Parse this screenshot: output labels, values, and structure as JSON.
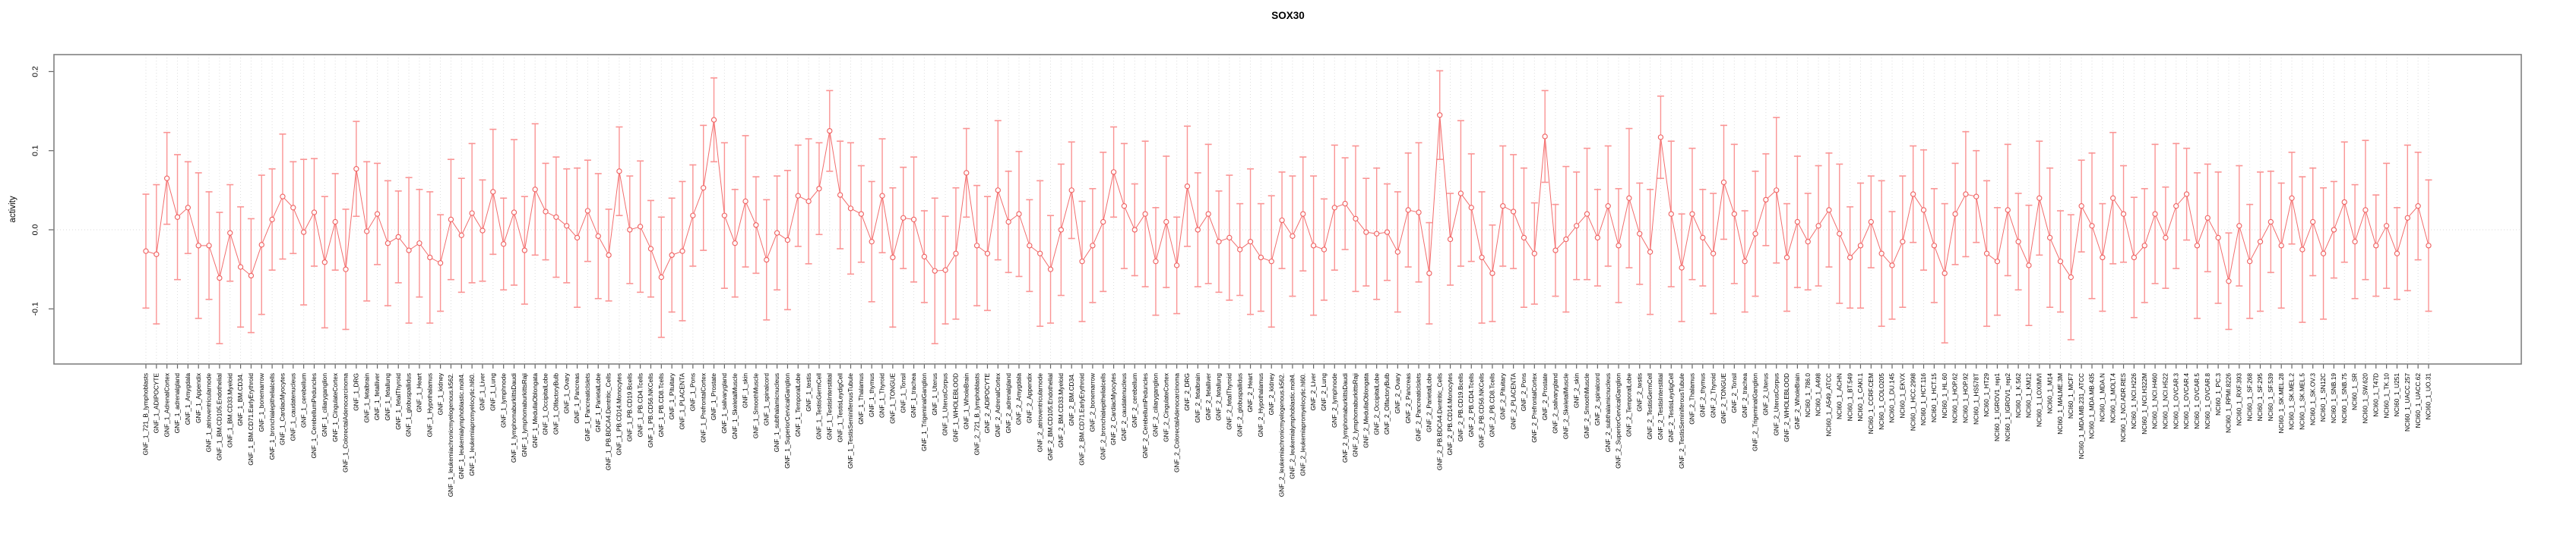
{
  "title": "SOX30",
  "y_axis": {
    "label": "activity",
    "ticks": [
      "0.2",
      "0.1",
      "0.0",
      "-0.1"
    ],
    "tick_values": [
      0.2,
      0.1,
      0.0,
      -0.1
    ]
  },
  "colors": {
    "series_line": "#f26d6d",
    "marker_stroke": "#ef5f5f",
    "error_bar": "#fa9494",
    "grid": "#dddddd",
    "zero_line": "#d8d8d8",
    "plot_border": "#808080",
    "tick": "#666666",
    "text": "#000000"
  },
  "chart_data": {
    "type": "line",
    "subtype": "points-with-error-bars",
    "title": "SOX30",
    "xlabel": "",
    "ylabel": "activity",
    "ylim": [
      -0.17,
      0.22
    ],
    "grid": "vertical-dotted-per-category, dotted-zero-line",
    "legend_position": "none",
    "categories": [
      "GNF_1_721_B_lymphoblasts",
      "GNF_1_ADIPOCYTE",
      "GNF_1_AdrenalCortex",
      "GNF_1_adrenalgland",
      "GNF_1_Amygdala",
      "GNF_1_Appendix",
      "GNF_1_atrioventricularnode",
      "GNF_1_BM.CD105.Endothelial",
      "GNF_1_BM.CD33.Myeloid",
      "GNF_1_BM.CD34.",
      "GNF_1_BM.CD71.EarlyErythroid",
      "GNF_1_bonemarrow",
      "GNF_1_bronchialepithelialcells",
      "GNF_1_CardiacMyocytes",
      "GNF_1_caudatenucleus",
      "GNF_1_cerebellum",
      "GNF_1_CerebellumPeduncles",
      "GNF_1_ciliaryganglion",
      "GNF_1_CingulateCortex",
      "GNF_1_ColorectalAdenocarcinoma",
      "GNF_1_DRG",
      "GNF_1_fetalbrain",
      "GNF_1_fetalliver",
      "GNF_1_fetallung",
      "GNF_1_fetalThyroid",
      "GNF_1_globuspallidus",
      "GNF_1_Heart",
      "GNF_1_Hypothalamus",
      "GNF_1_kidney",
      "GNF_1_leukemiachronicmyelogenous.k562.",
      "GNF_1_leukemialymphoblastic.molt4.",
      "GNF_1_leukemiapromyelocytic.hl60.",
      "GNF_1_Liver",
      "GNF_1_Lung",
      "GNF_1_lymphnode",
      "GNF_1_lymphomaburkittsDaudi",
      "GNF_1_lymphomaburkittsRaji",
      "GNF_1_MedullaOblongata",
      "GNF_1_OccipitalLobe",
      "GNF_1_OlfactoryBulb",
      "GNF_1_Ovary",
      "GNF_1_Pancreas",
      "GNF_1_PancreaticIslets",
      "GNF_1_ParietalLobe",
      "GNF_1_PB.BDCA4.Dentritic_Cells",
      "GNF_1_PB.CD14.Monocytes",
      "GNF_1_PB.CD19.Bcells",
      "GNF_1_PB.CD4.Tcells",
      "GNF_1_PB.CD56.NKCells",
      "GNF_1_PB.CD8.Tcells",
      "GNF_1_Pituitary",
      "GNF_1_PLACENTA",
      "GNF_1_Pons",
      "GNF_1_PrefrontalCortex",
      "GNF_1_Prostate",
      "GNF_1_salivarygland",
      "GNF_1_SkeletalMuscle",
      "GNF_1_skin",
      "GNF_1_SmoothMuscle",
      "GNF_1_spinalcord",
      "GNF_1_subthalamicnucleus",
      "GNF_1_SuperiorCervicalGanglion",
      "GNF_1_TemporalLobe",
      "GNF_1_testis",
      "GNF_1_TestisGermCell",
      "GNF_1_TestisInterstitial",
      "GNF_1_TestisLeydigCell",
      "GNF_1_TestisSeminiferousTubule",
      "GNF_1_Thalamus",
      "GNF_1_thymus",
      "GNF_1_Thyroid",
      "GNF_1_TONGUE",
      "GNF_1_Tonsil",
      "GNF_1_trachea",
      "GNF_1_TrigeminalGanglion",
      "GNF_1_Uterus",
      "GNF_1_UterusCorpus",
      "GNF_1_WHOLEBLOOD",
      "GNF_1_WholeBrain",
      "GNF_2_721_B_lymphoblasts",
      "GNF_2_ADIPOCYTE",
      "GNF_2_AdrenalCortex",
      "GNF_2_adrenalgland",
      "GNF_2_Amygdala",
      "GNF_2_Appendix",
      "GNF_2_atrioventricularnode",
      "GNF_2_BM.CD105.Endothelial",
      "GNF_2_BM.CD33.Myeloid",
      "GNF_2_BM.CD34.",
      "GNF_2_BM.CD71.EarlyErythroid",
      "GNF_2_bonemarrow",
      "GNF_2_bronchialepithelialcells",
      "GNF_2_CardiacMyocytes",
      "GNF_2_caudatenucleus",
      "GNF_2_cerebellum",
      "GNF_2_CerebellumPeduncles",
      "GNF_2_ciliaryganglion",
      "GNF_2_CingulateCortex",
      "GNF_2_ColorectalAdenocarcinoma",
      "GNF_2_DRG",
      "GNF_2_fetalbrain",
      "GNF_2_fetalliver",
      "GNF_2_fetallung",
      "GNF_2_fetalThyroid",
      "GNF_2_globuspallidus",
      "GNF_2_Heart",
      "GNF_2_Hypothalamus",
      "GNF_2_kidney",
      "GNF_2_leukemiachronicmyelogenous.k562.",
      "GNF_2_leukemialymphoblastic.molt4.",
      "GNF_2_leukemiapromyelocytic.hl60.",
      "GNF_2_Liver",
      "GNF_2_Lung",
      "GNF_2_lymphnode",
      "GNF_2_lymphomaburkittsDaudi",
      "GNF_2_lymphomaburkittsRaji",
      "GNF_2_MedullaOblongata",
      "GNF_2_OccipitalLobe",
      "GNF_2_OlfactoryBulb",
      "GNF_2_Ovary",
      "GNF_2_Pancreas",
      "GNF_2_PancreaticIslets",
      "GNF_2_ParietalLobe",
      "GNF_2_PB.BDCA4.Dentritic_Cells",
      "GNF_2_PB.CD14.Monocytes",
      "GNF_2_PB.CD19.Bcells",
      "GNF_2_PB.CD4.Tcells",
      "GNF_2_PB.CD56.NKCells",
      "GNF_2_PB.CD8.Tcells",
      "GNF_2_Pituitary",
      "GNF_2_PLACENTA",
      "GNF_2_Pons",
      "GNF_2_PrefrontalCortex",
      "GNF_2_Prostate",
      "GNF_2_salivarygland",
      "GNF_2_SkeletalMuscle",
      "GNF_2_skin",
      "GNF_2_SmoothMuscle",
      "GNF_2_spinalcord",
      "GNF_2_subthalamicnucleus",
      "GNF_2_SuperiorCervicalGanglion",
      "GNF_2_TemporalLobe",
      "GNF_2_testis",
      "GNF_2_TestisGermCell",
      "GNF_2_TestisInterstitial",
      "GNF_2_TestisLeydigCell",
      "GNF_2_TestisSeminiferousTubule",
      "GNF_2_Thalamus",
      "GNF_2_thymus",
      "GNF_2_Thyroid",
      "GNF_2_TONGUE",
      "GNF_2_Tonsil",
      "GNF_2_trachea",
      "GNF_2_TrigeminalGanglion",
      "GNF_2_Uterus",
      "GNF_2_UterusCorpus",
      "GNF_2_WHOLEBLOOD",
      "GNF_2_WholeBrain",
      "NCI60_1_786.0",
      "NCI60_1_A498",
      "NCI60_1_A549_ATCC",
      "NCI60_1_ACHN",
      "NCI60_1_BT.549",
      "NCI60_1_CAKI.1",
      "NCI60_1_CCRF.CEM",
      "NCI60_1_COLO205",
      "NCI60_1_DU.145",
      "NCI60_1_EKVX",
      "NCI60_1_HCC.2998",
      "NCI60_1_HCT.116",
      "NCI60_1_HCT.15",
      "NCI60_1_HL.60",
      "NCI60_1_HOP.62",
      "NCI60_1_HOP.92",
      "NCI60_1_HS578T",
      "NCI60_1_HT29",
      "NCI60_1_IGROV1_rep1",
      "NCI60_1_IGROV1_rep2",
      "NCI60_1_K.562",
      "NCI60_1_KM12",
      "NCI60_1_LOXIMVI",
      "NCI60_1_M14",
      "NCI60_1_MALME.3M",
      "NCI60_1_MCF7",
      "NCI60_1_MDA.MB.231_ATCC",
      "NCI60_1_MDA.MB.435",
      "NCI60_1_MDA.N",
      "NCI60_1_MOLT.4",
      "NCI60_1_NCI.ADR.RES",
      "NCI60_1_NCI.H226",
      "NCI60_1_NCI.H322M",
      "NCI60_1_NCI.H460",
      "NCI60_1_NCI.H522",
      "NCI60_1_OVCAR.3",
      "NCI60_1_OVCAR.4",
      "NCI60_1_OVCAR.5",
      "NCI60_1_OVCAR.8",
      "NCI60_1_PC.3",
      "NCI60_1_RPMI.8226",
      "NCI60_1_RXF.393",
      "NCI60_1_SF.268",
      "NCI60_1_SF.295",
      "NCI60_1_SF.539",
      "NCI60_1_SK.MEL.28",
      "NCI60_1_SK.MEL.2",
      "NCI60_1_SK.MEL.5",
      "NCI60_1_SK.OV.3",
      "NCI60_1_SN12C",
      "NCI60_1_SNB.19",
      "NCI60_1_SNB.75",
      "NCI60_1_SR",
      "NCI60_1_SW.620",
      "NCI60_1_T47D",
      "NCI60_1_TK.10",
      "NCI60_1_U251",
      "NCI60_1_UACC.257",
      "NCI60_1_UACC.62",
      "NCI60_1_UO.31"
    ],
    "values": [
      -0.027,
      -0.031,
      0.065,
      0.016,
      0.028,
      -0.02,
      -0.02,
      -0.061,
      -0.004,
      -0.047,
      -0.058,
      -0.019,
      0.013,
      0.042,
      0.028,
      -0.003,
      0.022,
      -0.041,
      0.01,
      -0.05,
      0.077,
      -0.002,
      0.02,
      -0.017,
      -0.009,
      -0.026,
      -0.017,
      -0.035,
      -0.042,
      0.013,
      -0.007,
      0.021,
      -0.001,
      0.048,
      -0.018,
      0.022,
      -0.026,
      0.051,
      0.023,
      0.016,
      0.005,
      -0.01,
      0.024,
      -0.008,
      -0.032,
      0.074,
      0.0,
      0.004,
      -0.024,
      -0.06,
      -0.032,
      -0.027,
      0.018,
      0.053,
      0.139,
      0.018,
      -0.017,
      0.036,
      0.006,
      -0.038,
      -0.004,
      -0.013,
      0.043,
      0.036,
      0.052,
      0.125,
      0.044,
      0.027,
      0.02,
      -0.015,
      0.043,
      -0.035,
      0.015,
      0.013,
      -0.034,
      -0.052,
      -0.051,
      -0.03,
      0.072,
      -0.02,
      -0.03,
      0.05,
      0.01,
      0.02,
      -0.02,
      -0.03,
      -0.05,
      0.0,
      0.05,
      -0.04,
      -0.02,
      0.01,
      0.073,
      0.03,
      0.0,
      0.02,
      -0.04,
      0.01,
      -0.045,
      0.055,
      0.0,
      0.02,
      -0.015,
      -0.01,
      -0.025,
      -0.015,
      -0.035,
      -0.04,
      0.012,
      -0.008,
      0.02,
      -0.02,
      -0.025,
      0.028,
      0.033,
      0.014,
      -0.003,
      -0.005,
      -0.003,
      -0.028,
      0.025,
      0.022,
      -0.055,
      0.145,
      -0.012,
      0.046,
      0.028,
      -0.035,
      -0.055,
      0.03,
      0.023,
      -0.01,
      -0.03,
      0.118,
      -0.026,
      -0.012,
      0.005,
      0.02,
      -0.01,
      0.03,
      -0.02,
      0.04,
      -0.005,
      -0.028,
      0.117,
      0.02,
      -0.048,
      0.02,
      -0.01,
      -0.03,
      0.06,
      0.02,
      -0.04,
      -0.005,
      0.038,
      0.05,
      -0.035,
      0.01,
      -0.015,
      0.005,
      0.025,
      -0.005,
      -0.035,
      -0.02,
      0.01,
      -0.03,
      -0.045,
      -0.015,
      0.045,
      0.025,
      -0.02,
      -0.055,
      0.02,
      0.045,
      0.042,
      -0.03,
      -0.04,
      0.025,
      -0.015,
      -0.045,
      0.04,
      -0.01,
      -0.04,
      -0.06,
      0.03,
      0.005,
      -0.035,
      0.04,
      0.02,
      -0.035,
      -0.02,
      0.02,
      -0.01,
      0.03,
      0.045,
      -0.02,
      0.015,
      -0.01,
      -0.065,
      0.005,
      -0.04,
      -0.015,
      0.01,
      -0.02,
      0.04,
      -0.025,
      0.01,
      -0.03,
      0.0,
      0.035,
      -0.015,
      0.025,
      -0.02,
      0.005,
      -0.03,
      0.015,
      0.03,
      -0.02
    ],
    "error_halfwidth_cycle": [
      0.072,
      0.088,
      0.064,
      0.079,
      0.058,
      0.092,
      0.068,
      0.083,
      0.061,
      0.076
    ],
    "error_halfwidth_overrides": {
      "2": 0.058,
      "20": 0.06,
      "45": 0.056,
      "54": 0.053,
      "65": 0.051,
      "78": 0.056,
      "92": 0.057,
      "123": 0.056,
      "133": 0.058,
      "144": 0.052
    }
  }
}
